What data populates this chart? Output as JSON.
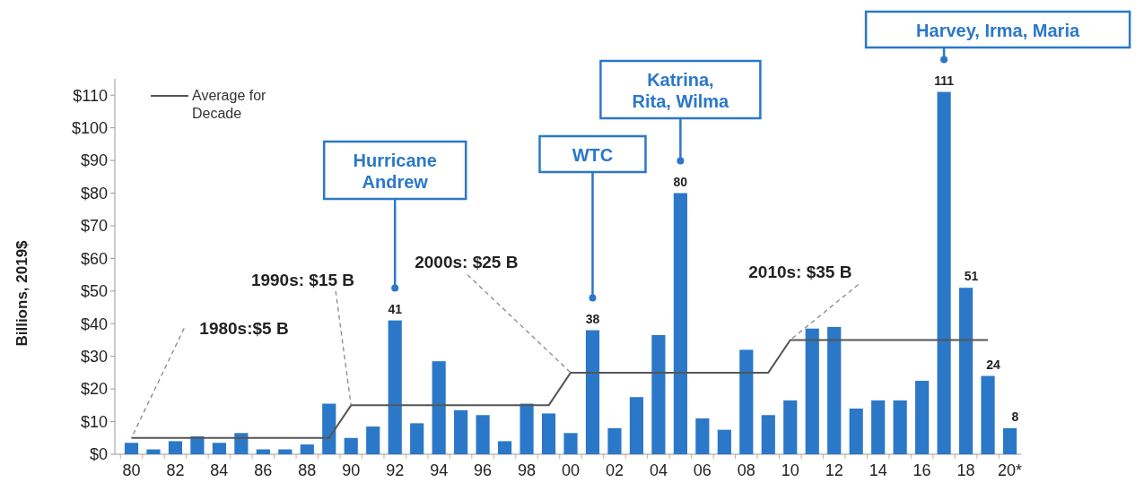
{
  "chart_data": {
    "type": "bar",
    "ylabel": "Billions, 2019$",
    "categories": [
      "80",
      null,
      "82",
      null,
      "84",
      null,
      "86",
      null,
      "88",
      null,
      "90",
      null,
      "92",
      null,
      "94",
      null,
      "96",
      null,
      "98",
      null,
      "00",
      null,
      "02",
      null,
      "04",
      null,
      "06",
      null,
      "08",
      null,
      "10",
      null,
      "12",
      null,
      "14",
      null,
      "16",
      null,
      "18",
      null,
      "20*"
    ],
    "series": [
      {
        "color": "#2b78c8",
        "values": [
          3.5,
          1.5,
          4,
          5.5,
          3.5,
          6.5,
          1.5,
          1.5,
          3,
          15.5,
          5,
          8.5,
          41,
          9.5,
          28.5,
          13.5,
          12,
          4,
          15.5,
          12.5,
          6.5,
          38,
          8,
          17.5,
          36.5,
          80,
          11,
          7.5,
          32,
          12,
          16.5,
          38.5,
          39,
          14,
          16.5,
          16.5,
          22.5,
          111,
          51,
          24,
          8
        ],
        "value_labels": [
          null,
          null,
          null,
          null,
          null,
          null,
          null,
          null,
          null,
          null,
          null,
          null,
          "41",
          null,
          null,
          null,
          null,
          null,
          null,
          null,
          null,
          "38",
          null,
          null,
          null,
          "80",
          null,
          null,
          null,
          null,
          null,
          null,
          null,
          null,
          null,
          null,
          null,
          "111",
          "51",
          "24",
          "8"
        ]
      },
      {
        "type": "line",
        "name": "Average for Decade",
        "color": "#555555",
        "values": [
          5,
          5,
          5,
          5,
          5,
          5,
          5,
          5,
          5,
          5,
          15,
          15,
          15,
          15,
          15,
          15,
          15,
          15,
          15,
          15,
          25,
          25,
          25,
          25,
          25,
          25,
          25,
          25,
          25,
          25,
          35,
          35,
          35,
          35,
          35,
          35,
          35,
          35,
          35,
          35,
          null
        ]
      }
    ],
    "ylim": [
      0,
      115
    ],
    "yticks": [
      {
        "value": 0,
        "label": "$0"
      },
      {
        "value": 10,
        "label": "$10"
      },
      {
        "value": 20,
        "label": "$20"
      },
      {
        "value": 30,
        "label": "$30"
      },
      {
        "value": 40,
        "label": "$40"
      },
      {
        "value": 50,
        "label": "$50"
      },
      {
        "value": 60,
        "label": "$60"
      },
      {
        "value": 70,
        "label": "$70"
      },
      {
        "value": 80,
        "label": "$80"
      },
      {
        "value": 90,
        "label": "$90"
      },
      {
        "value": 100,
        "label": "$100"
      },
      {
        "value": 110,
        "label": "$110"
      }
    ],
    "grid": false,
    "legend": "top left",
    "marker": "none",
    "line_style": "solid",
    "annotations": [
      "Hurricane\nAndrew",
      "WTC",
      "Katrina,\nRita, Wilma",
      "Harvey, Irma, Maria",
      {
        "text": "1980s:$5 B",
        "x": "80",
        "y": 5
      },
      {
        "text": "1990s: $15 B",
        "x": "90",
        "y": 15
      },
      {
        "text": "2000s: $25 B",
        "x": "00",
        "y": 25
      },
      {
        "text": "2010s: $35 B",
        "x": "10",
        "y": 35
      }
    ]
  }
}
